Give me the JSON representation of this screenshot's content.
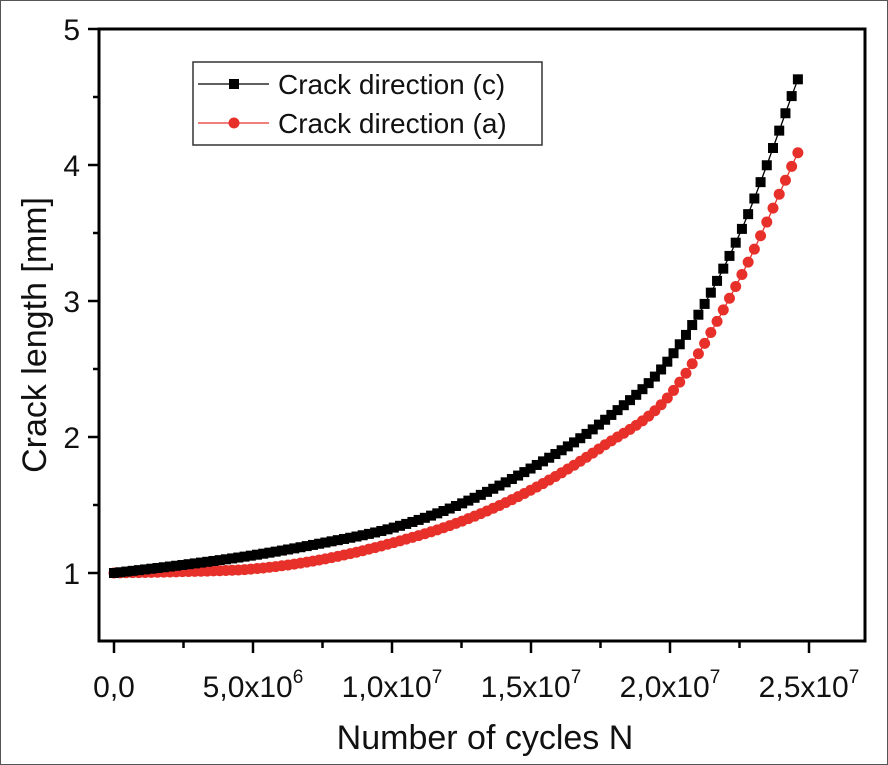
{
  "chart_data": {
    "type": "line",
    "title": "",
    "xlabel": "Number of cycles  N",
    "ylabel": "Crack length  [mm]",
    "xlim": [
      -500000,
      27000000
    ],
    "ylim": [
      0.5,
      5
    ],
    "grid": false,
    "legend_position": "upper-left",
    "x_ticks": [
      0,
      5000000,
      10000000,
      15000000,
      20000000,
      25000000
    ],
    "x_tick_labels": [
      {
        "mantissa": "0,0",
        "exp": ""
      },
      {
        "mantissa": "5,0x10",
        "exp": "6"
      },
      {
        "mantissa": "1,0x10",
        "exp": "7"
      },
      {
        "mantissa": "1,5x10",
        "exp": "7"
      },
      {
        "mantissa": "2,0x10",
        "exp": "7"
      },
      {
        "mantissa": "2,5x10",
        "exp": "7"
      }
    ],
    "y_ticks": [
      1,
      2,
      3,
      4,
      5
    ],
    "y_tick_labels": [
      "1",
      "2",
      "3",
      "4",
      "5"
    ],
    "series": [
      {
        "name": "Crack direction (c)",
        "color": "#000000",
        "marker": "square",
        "x": [
          0,
          2500000,
          5000000,
          7500000,
          10000000,
          12500000,
          15000000,
          17500000,
          20000000,
          22500000,
          24600000
        ],
        "values": [
          1.0,
          1.06,
          1.13,
          1.22,
          1.33,
          1.51,
          1.77,
          2.1,
          2.58,
          3.49,
          4.63
        ]
      },
      {
        "name": "Crack direction (a)",
        "color": "#e8302a",
        "marker": "circle",
        "x": [
          0,
          2500000,
          5000000,
          7500000,
          10000000,
          12500000,
          15000000,
          17500000,
          20000000,
          22500000,
          24600000
        ],
        "values": [
          1.0,
          1.01,
          1.03,
          1.1,
          1.22,
          1.38,
          1.61,
          1.92,
          2.31,
          3.16,
          4.09
        ]
      }
    ]
  },
  "legend": {
    "items": [
      {
        "label": "Crack direction (c)",
        "color": "#000000",
        "marker": "square"
      },
      {
        "label": "Crack direction (a)",
        "color": "#e8302a",
        "marker": "circle"
      }
    ]
  }
}
